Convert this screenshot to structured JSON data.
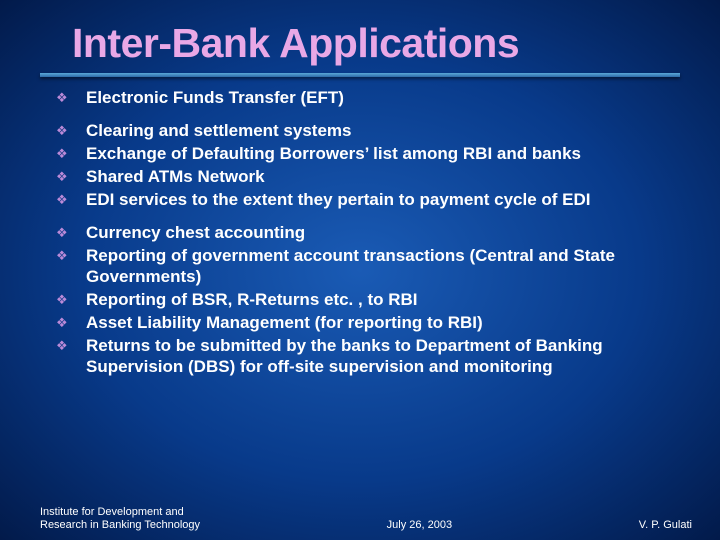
{
  "title": "Inter-Bank Applications",
  "title_color": "#e9a8e6",
  "background_center": "#1a5bb5",
  "background_edge": "#021a4a",
  "bullet_glyph": "❖",
  "bullet_color": "#bb8ad8",
  "text_color": "#ffffff",
  "body_fontsize_pt": 13,
  "title_fontsize_pt": 31,
  "groups": [
    {
      "items": [
        "Electronic Funds Transfer (EFT)"
      ]
    },
    {
      "items": [
        "Clearing and settlement systems",
        "Exchange of Defaulting Borrowers’ list among RBI and banks",
        "Shared ATMs Network",
        "EDI services to the extent they pertain to payment cycle of EDI"
      ]
    },
    {
      "items": [
        "Currency chest accounting",
        "Reporting of government account transactions (Central and State Governments)",
        "Reporting of BSR, R-Returns etc. , to RBI",
        "Asset Liability Management (for reporting to RBI)",
        "Returns to be submitted by the banks to Department of Banking Supervision (DBS) for off-site supervision and monitoring"
      ]
    }
  ],
  "footer": {
    "left_line1": "Institute for Development and",
    "left_line2": "Research in Banking Technology",
    "center": "July 26, 2003",
    "right": "V. P. Gulati"
  }
}
